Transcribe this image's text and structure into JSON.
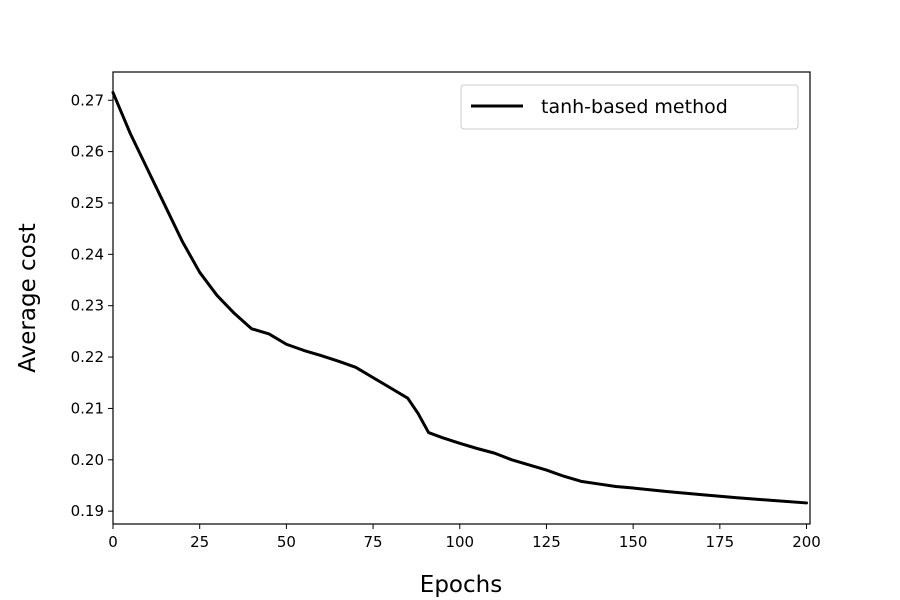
{
  "chart_data": {
    "type": "line",
    "title": "",
    "xlabel": "Epochs",
    "ylabel": "Average cost",
    "xlim": [
      0,
      201
    ],
    "ylim": [
      0.1875,
      0.2755
    ],
    "x_ticks": [
      0,
      25,
      50,
      75,
      100,
      125,
      150,
      175,
      200
    ],
    "x_tick_labels": [
      "0",
      "25",
      "50",
      "75",
      "100",
      "125",
      "150",
      "175",
      "200"
    ],
    "y_ticks": [
      0.19,
      0.2,
      0.21,
      0.22,
      0.23,
      0.24,
      0.25,
      0.26,
      0.27
    ],
    "y_tick_labels": [
      "0.19",
      "0.20",
      "0.21",
      "0.22",
      "0.23",
      "0.24",
      "0.25",
      "0.26",
      "0.27"
    ],
    "grid": false,
    "legend": {
      "position": "top-right",
      "entries": [
        "tanh-based method"
      ]
    },
    "series": [
      {
        "name": "tanh-based method",
        "color": "#000000",
        "x": [
          0,
          5,
          10,
          15,
          20,
          25,
          30,
          35,
          40,
          45,
          50,
          55,
          60,
          65,
          70,
          75,
          80,
          85,
          88,
          91,
          95,
          100,
          105,
          110,
          115,
          120,
          125,
          130,
          135,
          140,
          145,
          150,
          160,
          170,
          180,
          190,
          200
        ],
        "y": [
          0.2715,
          0.2635,
          0.2565,
          0.2495,
          0.2425,
          0.2365,
          0.232,
          0.2285,
          0.2255,
          0.2245,
          0.2225,
          0.2213,
          0.2203,
          0.2192,
          0.218,
          0.216,
          0.214,
          0.212,
          0.209,
          0.2053,
          0.2043,
          0.2032,
          0.2022,
          0.2013,
          0.2,
          0.199,
          0.198,
          0.1968,
          0.1958,
          0.1953,
          0.1948,
          0.1945,
          0.1938,
          0.1932,
          0.1926,
          0.1921,
          0.1916
        ]
      }
    ]
  }
}
